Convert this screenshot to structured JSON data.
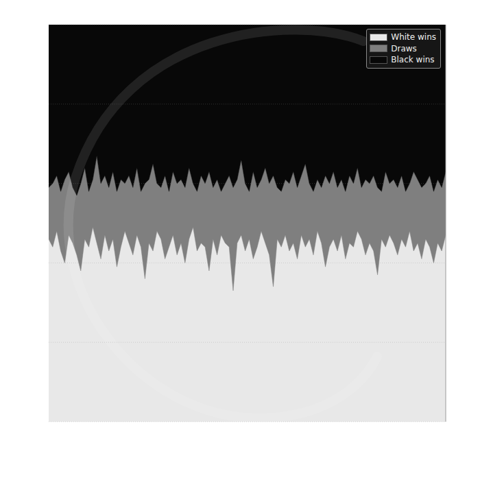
{
  "chart_data": {
    "type": "area",
    "stacked": true,
    "grid": true,
    "legend": "upper right",
    "tick_labels": false,
    "xlim": [
      0,
      99
    ],
    "ylim": [
      0,
      100
    ],
    "yticks": [
      0,
      20,
      40,
      60,
      80,
      100
    ],
    "x": [
      0,
      1,
      2,
      3,
      4,
      5,
      6,
      7,
      8,
      9,
      10,
      11,
      12,
      13,
      14,
      15,
      16,
      17,
      18,
      19,
      20,
      21,
      22,
      23,
      24,
      25,
      26,
      27,
      28,
      29,
      30,
      31,
      32,
      33,
      34,
      35,
      36,
      37,
      38,
      39,
      40,
      41,
      42,
      43,
      44,
      45,
      46,
      47,
      48,
      49,
      50,
      51,
      52,
      53,
      54,
      55,
      56,
      57,
      58,
      59,
      60,
      61,
      62,
      63,
      64,
      65,
      66,
      67,
      68,
      69,
      70,
      71,
      72,
      73,
      74,
      75,
      76,
      77,
      78,
      79,
      80,
      81,
      82,
      83,
      84,
      85,
      86,
      87,
      88,
      89,
      90,
      91,
      92,
      93,
      94,
      95,
      96,
      97,
      98,
      99
    ],
    "series": [
      {
        "name": "White wins",
        "color": "#e8e8e8",
        "values": [
          46,
          44,
          48,
          43,
          40,
          47,
          45,
          42,
          38,
          46,
          44,
          49,
          45,
          41,
          47,
          43,
          46,
          39,
          44,
          48,
          45,
          42,
          47,
          44,
          36,
          45,
          43,
          48,
          46,
          41,
          44,
          47,
          42,
          45,
          40,
          46,
          49,
          43,
          45,
          44,
          38,
          46,
          42,
          47,
          45,
          44,
          33,
          45,
          47,
          43,
          46,
          41,
          44,
          48,
          45,
          42,
          34,
          46,
          44,
          47,
          43,
          45,
          41,
          47,
          44,
          46,
          42,
          48,
          45,
          39,
          44,
          46,
          43,
          47,
          41,
          45,
          44,
          48,
          46,
          42,
          45,
          43,
          37,
          46,
          44,
          47,
          45,
          42,
          46,
          44,
          48,
          43,
          45,
          41,
          46,
          44,
          40,
          45,
          43,
          47
        ]
      },
      {
        "name": "Draws",
        "color": "#7f7f7f",
        "values": [
          13,
          16,
          14,
          15,
          21,
          16,
          14,
          15,
          22,
          18,
          14,
          12,
          22,
          19,
          15,
          16,
          17,
          19,
          17,
          12,
          17,
          17,
          17,
          14,
          24,
          16,
          22,
          12,
          13,
          21,
          14,
          16,
          18,
          16,
          19,
          18,
          11,
          15,
          17,
          16,
          25,
          13,
          19,
          11,
          15,
          18,
          26,
          16,
          19,
          17,
          12,
          22,
          15,
          13,
          19,
          18,
          28,
          13,
          14,
          14,
          17,
          18,
          18,
          15,
          21,
          14,
          16,
          13,
          14,
          23,
          16,
          17,
          16,
          14,
          17,
          17,
          16,
          16,
          13,
          19,
          15,
          19,
          22,
          12,
          19,
          13,
          16,
          17,
          16,
          14,
          12,
          20,
          16,
          18,
          14,
          18,
          18,
          16,
          16,
          16
        ]
      },
      {
        "name": "Black wins",
        "color": "#080808",
        "values": [
          41,
          40,
          38,
          42,
          39,
          37,
          41,
          43,
          40,
          36,
          42,
          39,
          33,
          40,
          38,
          41,
          37,
          42,
          39,
          40,
          38,
          41,
          36,
          42,
          40,
          39,
          35,
          40,
          41,
          38,
          42,
          37,
          40,
          39,
          41,
          36,
          40,
          42,
          38,
          40,
          37,
          41,
          39,
          42,
          40,
          38,
          41,
          39,
          34,
          40,
          42,
          37,
          41,
          39,
          36,
          40,
          38,
          41,
          42,
          39,
          40,
          37,
          41,
          38,
          35,
          40,
          42,
          39,
          41,
          38,
          40,
          37,
          41,
          39,
          42,
          38,
          40,
          36,
          41,
          39,
          40,
          38,
          41,
          42,
          37,
          40,
          39,
          41,
          38,
          42,
          40,
          37,
          39,
          41,
          40,
          38,
          42,
          39,
          41,
          37
        ]
      }
    ]
  }
}
